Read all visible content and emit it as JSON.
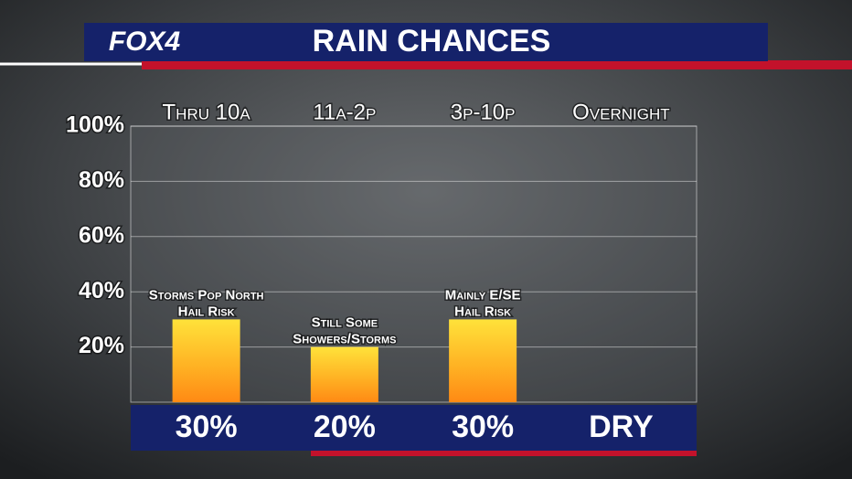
{
  "chart_data": {
    "type": "bar",
    "brand": "FOX4",
    "title": "RAIN CHANCES",
    "categories": [
      "Thru 10a",
      "11a-2p",
      "3p-10p",
      "Overnight"
    ],
    "values": [
      30,
      20,
      30,
      null
    ],
    "value_labels": [
      "30%",
      "20%",
      "30%",
      "DRY"
    ],
    "annotations": [
      [
        "Storms Pop North",
        "Hail Risk"
      ],
      [
        "Still Some",
        "Showers/Storms"
      ],
      [
        "Mainly E/SE",
        "Hail Risk"
      ],
      null
    ],
    "ylim": [
      0,
      100
    ],
    "yticks": [
      {
        "value": 20,
        "label": "20%"
      },
      {
        "value": 40,
        "label": "40%"
      },
      {
        "value": 60,
        "label": "60%"
      },
      {
        "value": 80,
        "label": "80%"
      },
      {
        "value": 100,
        "label": "100%"
      }
    ],
    "grid": true
  }
}
